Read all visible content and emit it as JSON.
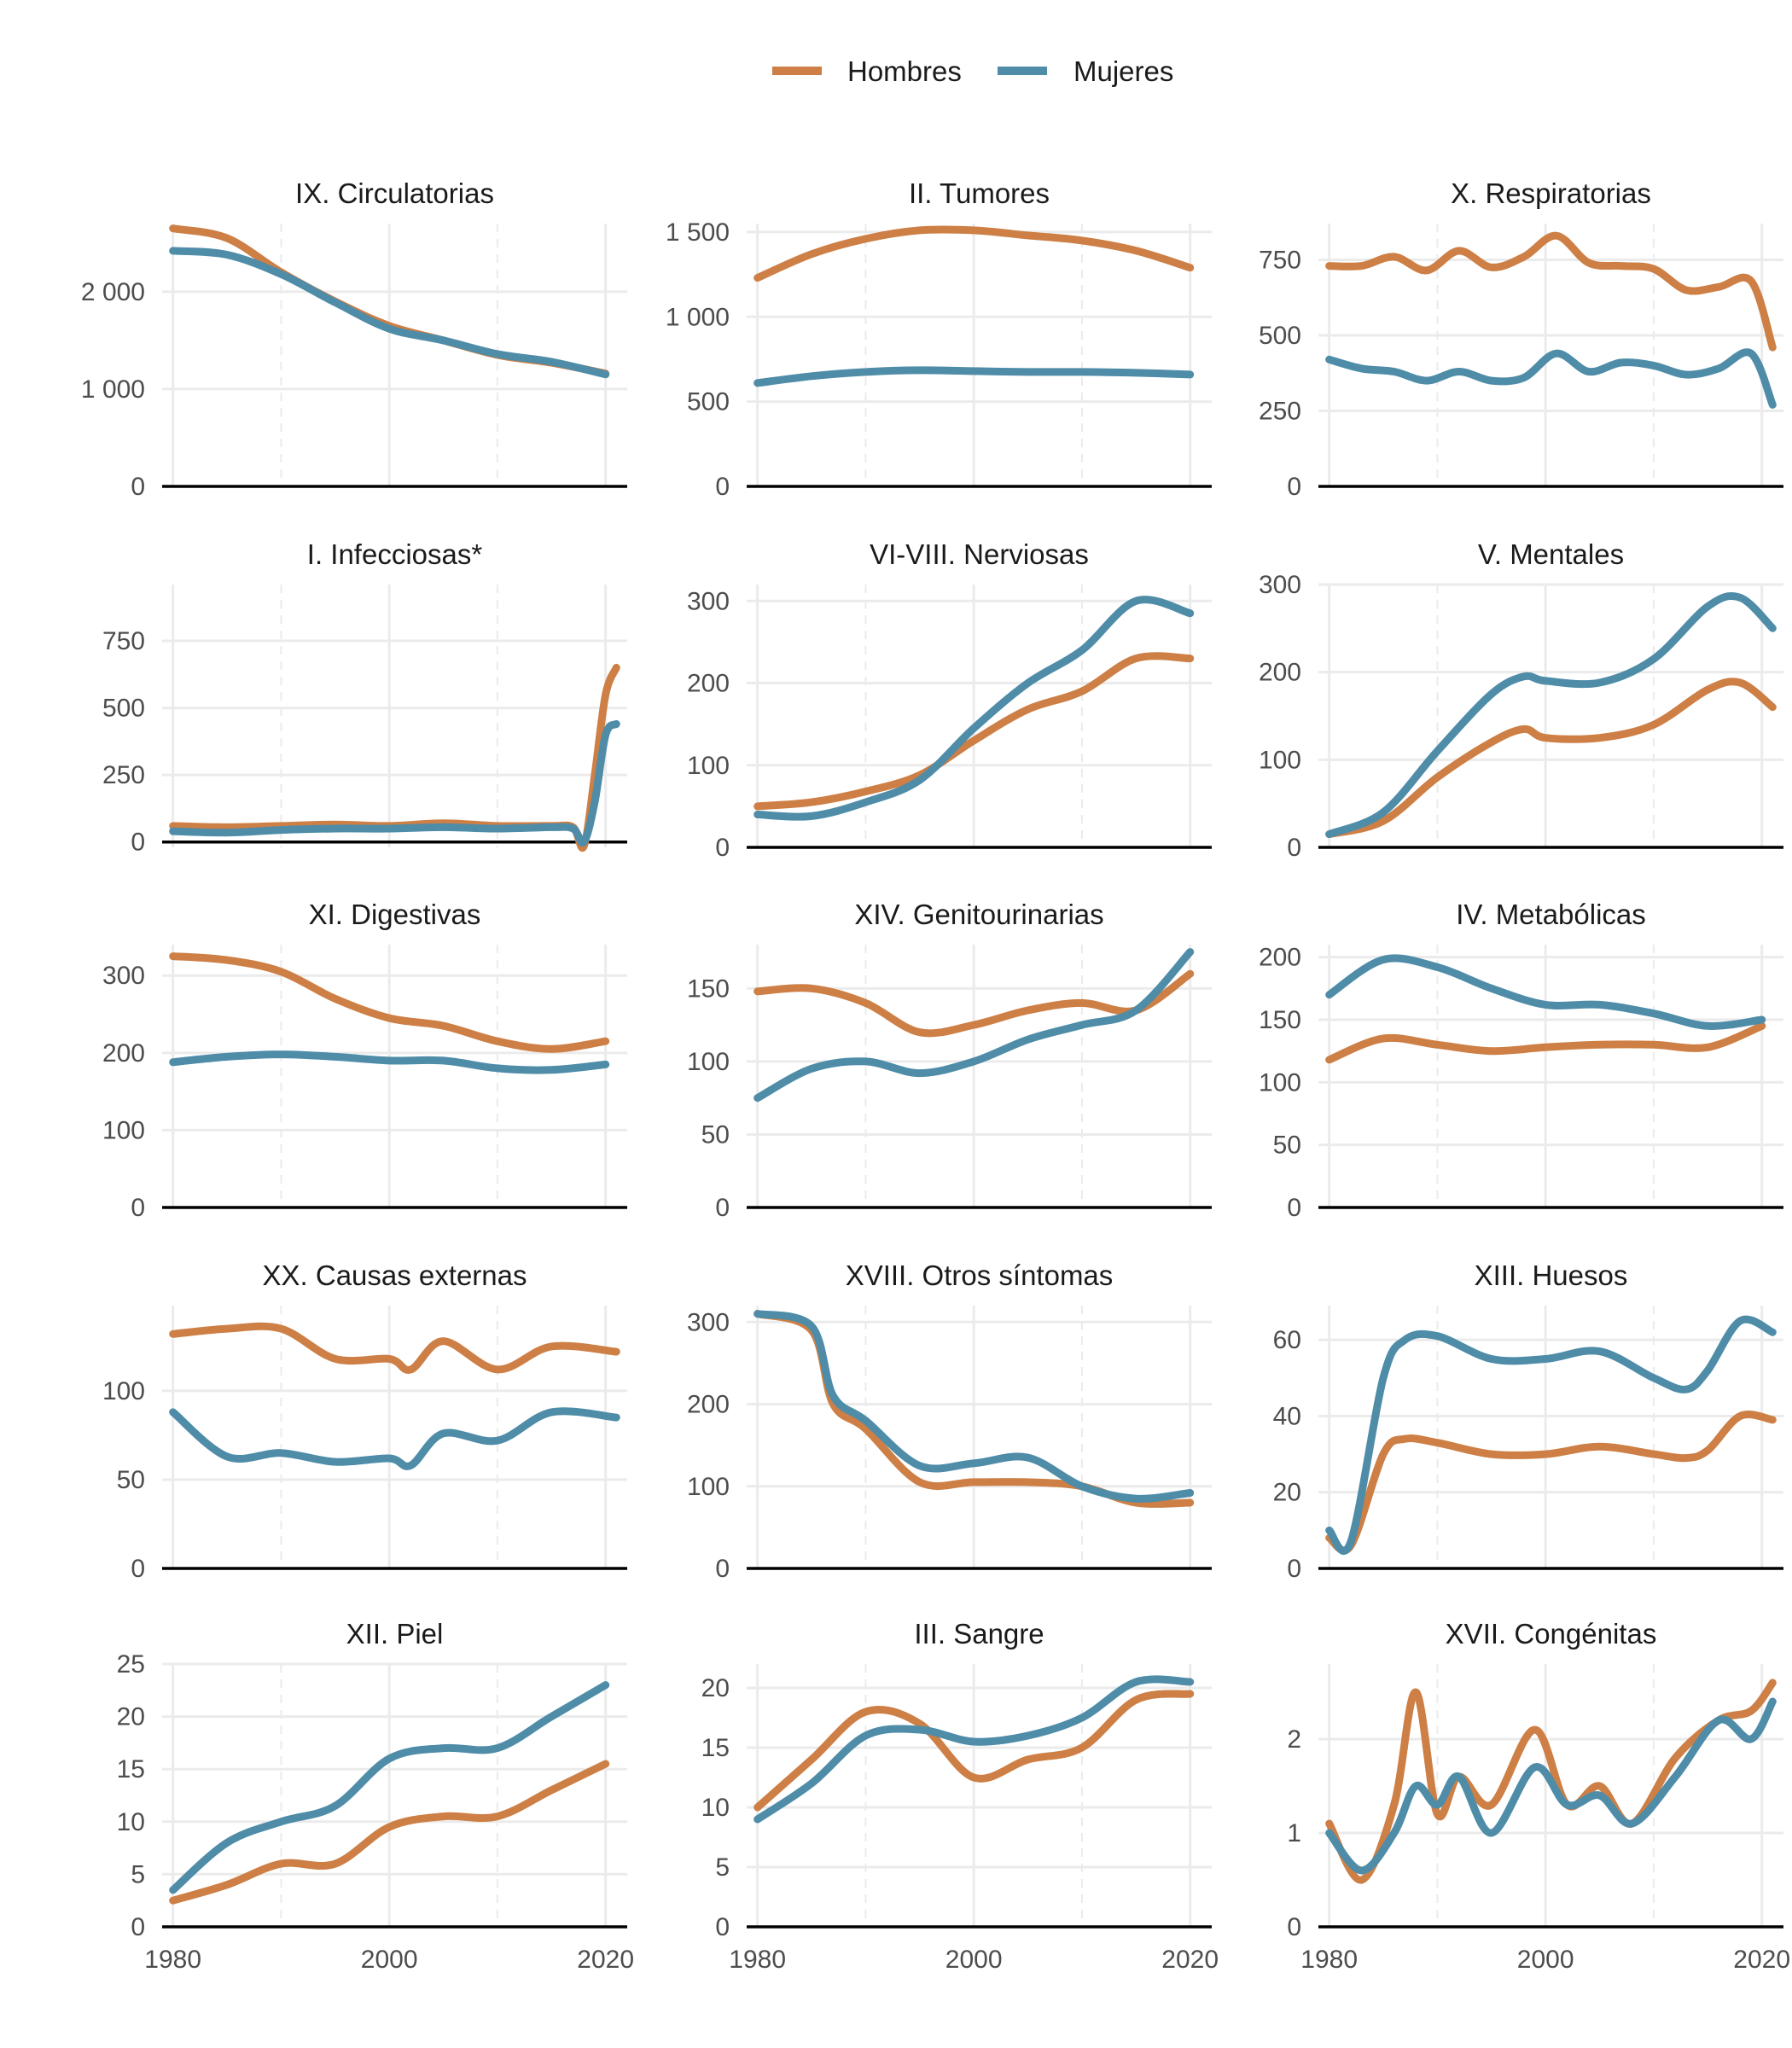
{
  "colors": {
    "hombres": "#CD7F45",
    "mujeres": "#4E8CA8",
    "grid": "#EBEBEB",
    "axis": "#000000"
  },
  "legend": [
    {
      "label": "Hombres",
      "color": "#CD7F45"
    },
    {
      "label": "Mujeres",
      "color": "#4E8CA8"
    }
  ],
  "chart_data": [
    {
      "type": "line",
      "title": "IX. Circulatorias",
      "ylim": [
        0,
        2700
      ],
      "yticks": [
        "0",
        "1 000",
        "2 000"
      ],
      "ytick_values": [
        0,
        1000,
        2000
      ],
      "x": [
        1980,
        1985,
        1990,
        1995,
        2000,
        2005,
        2010,
        2015,
        2020
      ],
      "series": [
        {
          "name": "Hombres",
          "values": [
            2650,
            2550,
            2200,
            1900,
            1650,
            1500,
            1350,
            1270,
            1160
          ]
        },
        {
          "name": "Mujeres",
          "values": [
            2420,
            2380,
            2180,
            1890,
            1620,
            1500,
            1360,
            1280,
            1150
          ]
        }
      ]
    },
    {
      "type": "line",
      "title": "II. Tumores",
      "ylim": [
        0,
        1550
      ],
      "yticks": [
        "0",
        "500",
        "1 000",
        "1 500"
      ],
      "ytick_values": [
        0,
        500,
        1000,
        1500
      ],
      "x": [
        1980,
        1985,
        1990,
        1995,
        2000,
        2005,
        2010,
        2015,
        2020
      ],
      "series": [
        {
          "name": "Hombres",
          "values": [
            1230,
            1370,
            1460,
            1510,
            1510,
            1480,
            1450,
            1390,
            1290
          ]
        },
        {
          "name": "Mujeres",
          "values": [
            610,
            650,
            675,
            685,
            680,
            675,
            675,
            670,
            660
          ]
        }
      ]
    },
    {
      "type": "line",
      "title": "X. Respiratorias",
      "ylim": [
        0,
        870
      ],
      "yticks": [
        "0",
        "250",
        "500",
        "750"
      ],
      "ytick_values": [
        0,
        250,
        500,
        750
      ],
      "x": [
        1980,
        1983,
        1986,
        1989,
        1992,
        1995,
        1998,
        2001,
        2004,
        2007,
        2010,
        2013,
        2016,
        2019,
        2021
      ],
      "series": [
        {
          "name": "Hombres",
          "values": [
            730,
            730,
            760,
            715,
            780,
            725,
            760,
            830,
            740,
            730,
            720,
            650,
            660,
            680,
            460
          ]
        },
        {
          "name": "Mujeres",
          "values": [
            420,
            390,
            380,
            350,
            380,
            350,
            360,
            440,
            380,
            410,
            400,
            370,
            390,
            440,
            270
          ]
        }
      ]
    },
    {
      "type": "line",
      "title": "I. Infecciosas*",
      "ylim": [
        -20,
        960
      ],
      "yticks": [
        "0",
        "250",
        "500",
        "750"
      ],
      "ytick_values": [
        0,
        250,
        500,
        750
      ],
      "x": [
        1980,
        1985,
        1990,
        1995,
        2000,
        2005,
        2010,
        2015,
        2017,
        2018,
        2019,
        2020,
        2021
      ],
      "series": [
        {
          "name": "Hombres",
          "values": [
            60,
            55,
            60,
            65,
            60,
            70,
            60,
            60,
            55,
            -15,
            250,
            550,
            650
          ]
        },
        {
          "name": "Mujeres",
          "values": [
            40,
            35,
            45,
            50,
            50,
            55,
            50,
            55,
            50,
            0,
            150,
            400,
            440
          ]
        }
      ]
    },
    {
      "type": "line",
      "title": "VI-VIII. Nerviosas",
      "ylim": [
        0,
        320
      ],
      "yticks": [
        "0",
        "100",
        "200",
        "300"
      ],
      "ytick_values": [
        0,
        100,
        200,
        300
      ],
      "x": [
        1980,
        1985,
        1990,
        1995,
        2000,
        2005,
        2010,
        2015,
        2020
      ],
      "series": [
        {
          "name": "Hombres",
          "values": [
            50,
            55,
            68,
            88,
            130,
            168,
            190,
            230,
            230
          ]
        },
        {
          "name": "Mujeres",
          "values": [
            40,
            38,
            55,
            82,
            145,
            200,
            240,
            300,
            285
          ]
        }
      ]
    },
    {
      "type": "line",
      "title": "V. Mentales",
      "ylim": [
        0,
        300
      ],
      "yticks": [
        "0",
        "100",
        "200",
        "300"
      ],
      "ytick_values": [
        0,
        100,
        200,
        300
      ],
      "x": [
        1980,
        1985,
        1990,
        1995,
        1998,
        2000,
        2005,
        2010,
        2015,
        2018,
        2021
      ],
      "series": [
        {
          "name": "Hombres",
          "values": [
            15,
            30,
            80,
            120,
            135,
            125,
            125,
            140,
            180,
            188,
            160
          ]
        },
        {
          "name": "Mujeres",
          "values": [
            15,
            40,
            110,
            175,
            195,
            190,
            188,
            215,
            275,
            285,
            250
          ]
        }
      ]
    },
    {
      "type": "line",
      "title": "XI. Digestivas",
      "ylim": [
        0,
        340
      ],
      "yticks": [
        "0",
        "100",
        "200",
        "300"
      ],
      "ytick_values": [
        0,
        100,
        200,
        300
      ],
      "x": [
        1980,
        1985,
        1990,
        1995,
        2000,
        2005,
        2010,
        2015,
        2020
      ],
      "series": [
        {
          "name": "Hombres",
          "values": [
            325,
            320,
            305,
            270,
            245,
            235,
            215,
            205,
            215
          ]
        },
        {
          "name": "Mujeres",
          "values": [
            188,
            195,
            198,
            195,
            190,
            190,
            180,
            178,
            185
          ]
        }
      ]
    },
    {
      "type": "line",
      "title": "XIV. Genitourinarias",
      "ylim": [
        0,
        180
      ],
      "yticks": [
        "0",
        "50",
        "100",
        "150"
      ],
      "ytick_values": [
        0,
        50,
        100,
        150
      ],
      "x": [
        1980,
        1985,
        1990,
        1995,
        2000,
        2005,
        2010,
        2015,
        2020
      ],
      "series": [
        {
          "name": "Hombres",
          "values": [
            148,
            150,
            140,
            120,
            125,
            135,
            140,
            135,
            160
          ]
        },
        {
          "name": "Mujeres",
          "values": [
            75,
            95,
            100,
            92,
            100,
            115,
            125,
            135,
            175
          ]
        }
      ]
    },
    {
      "type": "line",
      "title": "IV. Metabólicas",
      "ylim": [
        0,
        210
      ],
      "yticks": [
        "0",
        "50",
        "100",
        "150",
        "200"
      ],
      "ytick_values": [
        0,
        50,
        100,
        150,
        200
      ],
      "x": [
        1980,
        1985,
        1990,
        1995,
        2000,
        2005,
        2010,
        2015,
        2020
      ],
      "series": [
        {
          "name": "Hombres",
          "values": [
            118,
            135,
            130,
            125,
            128,
            130,
            130,
            128,
            145
          ]
        },
        {
          "name": "Mujeres",
          "values": [
            170,
            198,
            192,
            175,
            162,
            162,
            155,
            145,
            150
          ]
        }
      ]
    },
    {
      "type": "line",
      "title": "XX. Causas externas",
      "ylim": [
        0,
        148
      ],
      "yticks": [
        "0",
        "50",
        "100"
      ],
      "ytick_values": [
        0,
        50,
        100
      ],
      "x": [
        1980,
        1985,
        1990,
        1995,
        2000,
        2002,
        2005,
        2010,
        2015,
        2021
      ],
      "series": [
        {
          "name": "Hombres",
          "values": [
            132,
            135,
            135,
            118,
            118,
            112,
            128,
            112,
            125,
            122
          ]
        },
        {
          "name": "Mujeres",
          "values": [
            88,
            63,
            65,
            60,
            62,
            58,
            76,
            72,
            88,
            85
          ]
        }
      ]
    },
    {
      "type": "line",
      "title": "XVIII. Otros síntomas",
      "ylim": [
        0,
        320
      ],
      "yticks": [
        "0",
        "100",
        "200",
        "300"
      ],
      "ytick_values": [
        0,
        100,
        200,
        300
      ],
      "x": [
        1980,
        1985,
        1987,
        1990,
        1995,
        2000,
        2005,
        2010,
        2015,
        2020
      ],
      "series": [
        {
          "name": "Hombres",
          "values": [
            310,
            290,
            200,
            170,
            105,
            105,
            105,
            100,
            80,
            80
          ]
        },
        {
          "name": "Mujeres",
          "values": [
            310,
            295,
            210,
            180,
            125,
            128,
            135,
            100,
            85,
            92
          ]
        }
      ]
    },
    {
      "type": "line",
      "title": "XIII. Huesos",
      "ylim": [
        0,
        69
      ],
      "yticks": [
        "0",
        "20",
        "40",
        "60"
      ],
      "ytick_values": [
        0,
        20,
        40,
        60
      ],
      "x": [
        1980,
        1982,
        1985,
        1987,
        1990,
        1995,
        2000,
        2005,
        2010,
        2013,
        2015,
        2018,
        2021
      ],
      "series": [
        {
          "name": "Hombres",
          "values": [
            8,
            6,
            30,
            34,
            33,
            30,
            30,
            32,
            30,
            29,
            31,
            40,
            39
          ]
        },
        {
          "name": "Mujeres",
          "values": [
            10,
            7,
            50,
            60,
            61,
            55,
            55,
            57,
            50,
            47,
            52,
            65,
            62
          ]
        }
      ]
    },
    {
      "type": "line",
      "title": "XII. Piel",
      "ylim": [
        0,
        25
      ],
      "yticks": [
        "0",
        "5",
        "10",
        "15",
        "20",
        "25"
      ],
      "ytick_values": [
        0,
        5,
        10,
        15,
        20,
        25
      ],
      "x": [
        1980,
        1985,
        1990,
        1995,
        2000,
        2005,
        2010,
        2015,
        2020
      ],
      "series": [
        {
          "name": "Hombres",
          "values": [
            2.5,
            4,
            6,
            6,
            9.5,
            10.5,
            10.5,
            13,
            15.5
          ]
        },
        {
          "name": "Mujeres",
          "values": [
            3.5,
            8,
            10,
            11.5,
            16,
            17,
            17,
            20,
            23
          ]
        }
      ]
    },
    {
      "type": "line",
      "title": "III. Sangre",
      "ylim": [
        0,
        22
      ],
      "yticks": [
        "0",
        "5",
        "10",
        "15",
        "20"
      ],
      "ytick_values": [
        0,
        5,
        10,
        15,
        20
      ],
      "x": [
        1980,
        1985,
        1990,
        1995,
        2000,
        2005,
        2010,
        2015,
        2020
      ],
      "series": [
        {
          "name": "Hombres",
          "values": [
            10,
            14,
            18,
            17,
            12.5,
            14,
            15,
            19,
            19.5
          ]
        },
        {
          "name": "Mujeres",
          "values": [
            9,
            12,
            16,
            16.5,
            15.5,
            16,
            17.5,
            20.5,
            20.5
          ]
        }
      ]
    },
    {
      "type": "line",
      "title": "XVII. Congénitas",
      "ylim": [
        0,
        2.8
      ],
      "yticks": [
        "0",
        "1",
        "2"
      ],
      "ytick_values": [
        0,
        1,
        2
      ],
      "x": [
        1980,
        1983,
        1986,
        1988,
        1990,
        1992,
        1995,
        1999,
        2002,
        2005,
        2008,
        2012,
        2016,
        2019,
        2021
      ],
      "series": [
        {
          "name": "Hombres",
          "values": [
            1.1,
            0.5,
            1.3,
            2.5,
            1.2,
            1.6,
            1.3,
            2.1,
            1.3,
            1.5,
            1.1,
            1.8,
            2.2,
            2.3,
            2.6
          ]
        },
        {
          "name": "Mujeres",
          "values": [
            1.0,
            0.6,
            1.0,
            1.5,
            1.3,
            1.6,
            1.0,
            1.7,
            1.3,
            1.4,
            1.1,
            1.6,
            2.2,
            2.0,
            2.4
          ]
        }
      ]
    }
  ],
  "x_axis": {
    "ticks": [
      "1980",
      "2000",
      "2020"
    ],
    "tick_values": [
      1980,
      2000,
      2020
    ],
    "xlim": [
      1979,
      2022
    ]
  }
}
